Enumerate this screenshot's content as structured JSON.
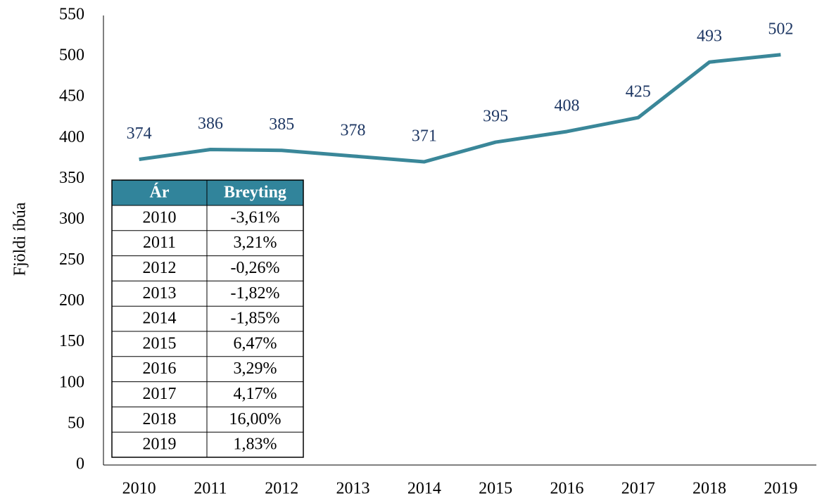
{
  "chart_data": {
    "type": "line",
    "y_label": "Fjöldi íbúa",
    "categories": [
      "2010",
      "2011",
      "2012",
      "2013",
      "2014",
      "2015",
      "2016",
      "2017",
      "2018",
      "2019"
    ],
    "values": [
      374,
      386,
      385,
      378,
      371,
      395,
      408,
      425,
      493,
      502
    ],
    "color": "#3a8799",
    "label_color": "#1f3864",
    "ylim": [
      0,
      550
    ],
    "yticks": [
      0,
      50,
      100,
      150,
      200,
      250,
      300,
      350,
      400,
      450,
      500,
      550
    ],
    "grid": false
  },
  "table": {
    "header": [
      "Ár",
      "Breyting"
    ],
    "header_color": "#31849b",
    "rows": [
      [
        "2010",
        "-3,61%"
      ],
      [
        "2011",
        "3,21%"
      ],
      [
        "2012",
        "-0,26%"
      ],
      [
        "2013",
        "-1,82%"
      ],
      [
        "2014",
        "-1,85%"
      ],
      [
        "2015",
        "6,47%"
      ],
      [
        "2016",
        "3,29%"
      ],
      [
        "2017",
        "4,17%"
      ],
      [
        "2018",
        "16,00%"
      ],
      [
        "2019",
        "1,83%"
      ]
    ]
  }
}
